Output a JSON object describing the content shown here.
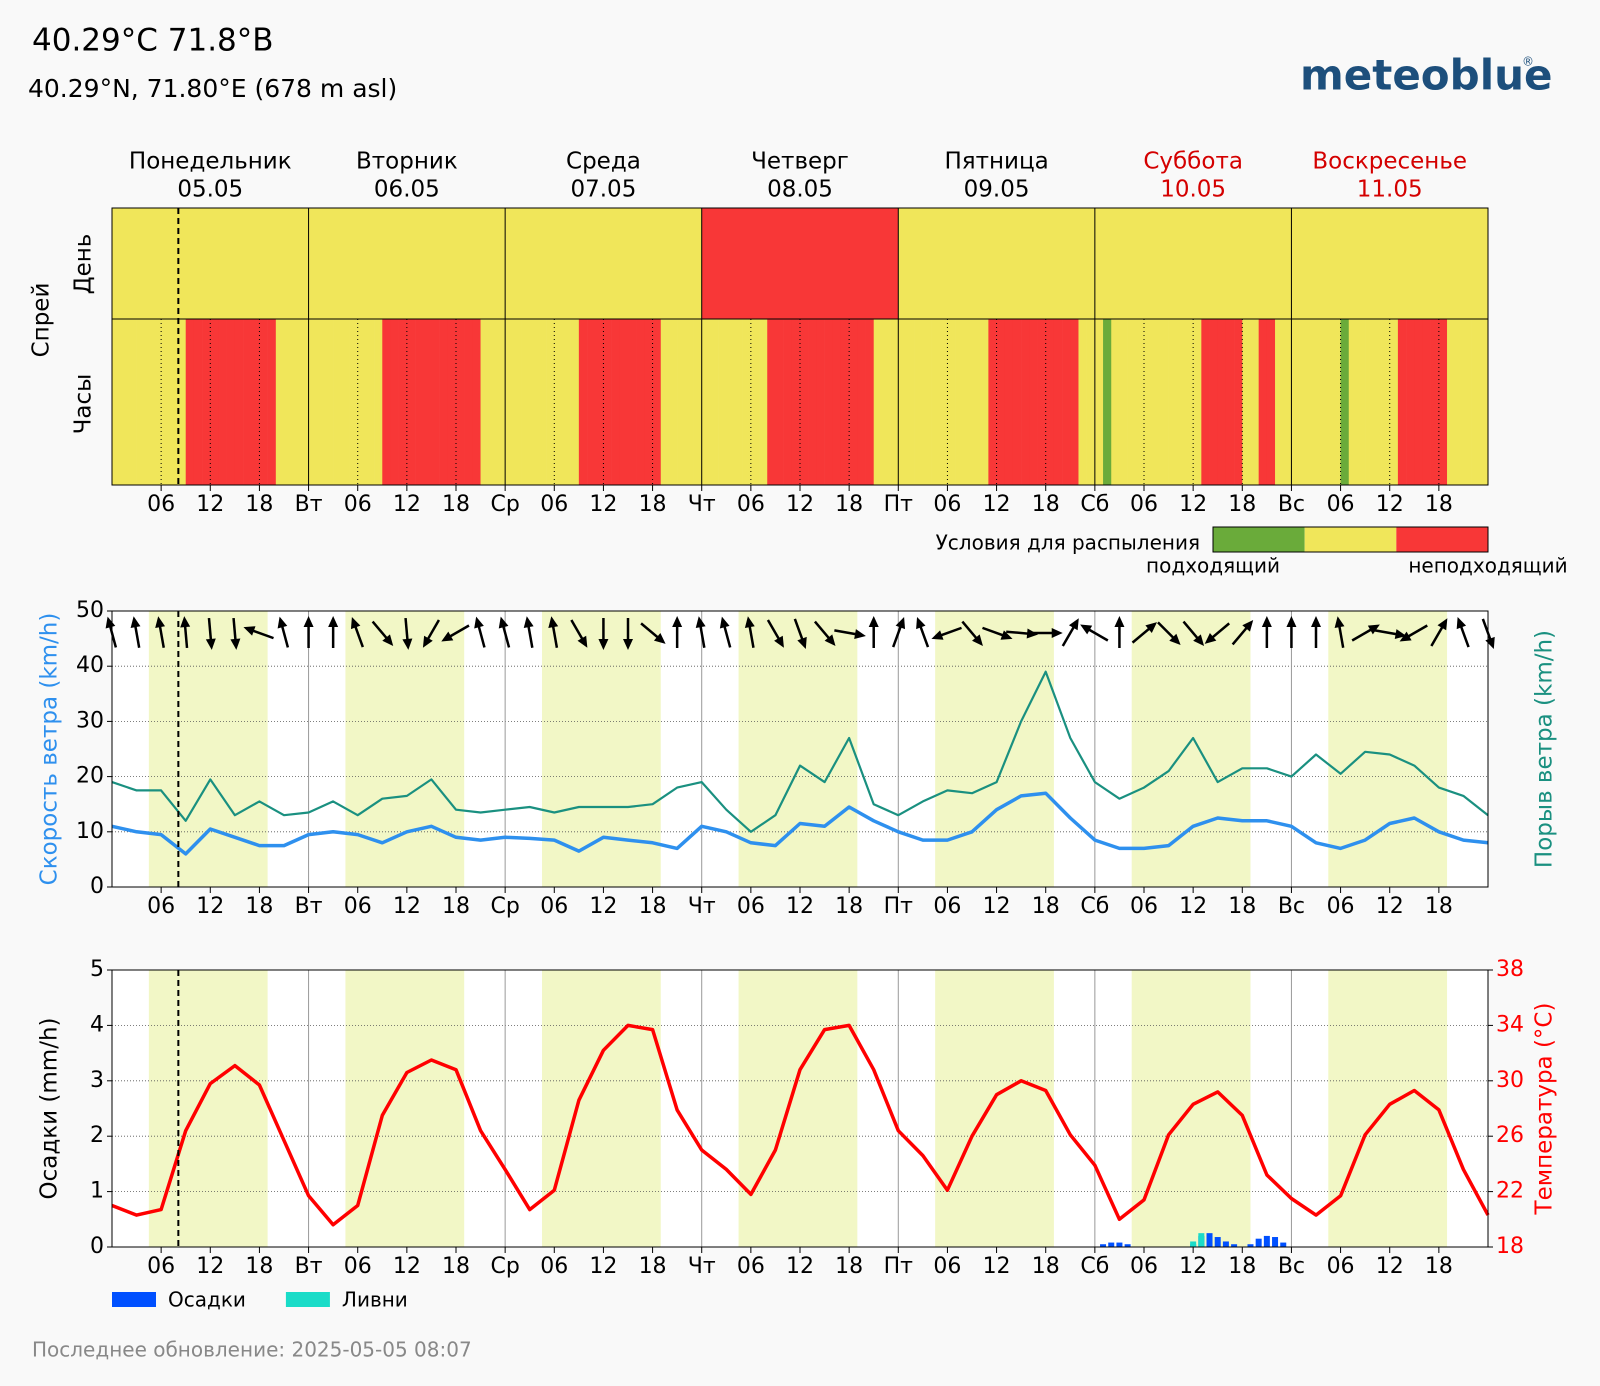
{
  "header": {
    "title": "40.29°C 71.8°В",
    "subtitle": "40.29°N, 71.80°E (678 m asl)",
    "logo": "meteoblue",
    "logo_mark": "®"
  },
  "days": [
    {
      "name": "Понедельник",
      "date": "05.05",
      "color": "#000000"
    },
    {
      "name": "Вторник",
      "date": "06.05",
      "color": "#000000"
    },
    {
      "name": "Среда",
      "date": "07.05",
      "color": "#000000"
    },
    {
      "name": "Четверг",
      "date": "08.05",
      "color": "#000000"
    },
    {
      "name": "Пятница",
      "date": "09.05",
      "color": "#000000"
    },
    {
      "name": "Суббота",
      "date": "10.05",
      "color": "#d40000"
    },
    {
      "name": "Воскресенье",
      "date": "11.05",
      "color": "#d40000"
    }
  ],
  "xlim": [
    0,
    168
  ],
  "xticks": [
    {
      "value": 6,
      "label": "06"
    },
    {
      "value": 12,
      "label": "12"
    },
    {
      "value": 18,
      "label": "18"
    },
    {
      "value": 24,
      "label": "Вт"
    },
    {
      "value": 30,
      "label": "06"
    },
    {
      "value": 36,
      "label": "12"
    },
    {
      "value": 42,
      "label": "18"
    },
    {
      "value": 48,
      "label": "Ср"
    },
    {
      "value": 54,
      "label": "06"
    },
    {
      "value": 60,
      "label": "12"
    },
    {
      "value": 66,
      "label": "18"
    },
    {
      "value": 72,
      "label": "Чт"
    },
    {
      "value": 78,
      "label": "06"
    },
    {
      "value": 84,
      "label": "12"
    },
    {
      "value": 90,
      "label": "18"
    },
    {
      "value": 96,
      "label": "Пт"
    },
    {
      "value": 102,
      "label": "06"
    },
    {
      "value": 108,
      "label": "12"
    },
    {
      "value": 114,
      "label": "18"
    },
    {
      "value": 120,
      "label": "Сб"
    },
    {
      "value": 126,
      "label": "06"
    },
    {
      "value": 132,
      "label": "12"
    },
    {
      "value": 138,
      "label": "18"
    },
    {
      "value": 144,
      "label": "Вс"
    },
    {
      "value": 150,
      "label": "06"
    },
    {
      "value": 156,
      "label": "12"
    },
    {
      "value": 162,
      "label": "18"
    }
  ],
  "now": 8.1,
  "daylight": [
    [
      4.5,
      19
    ],
    [
      28.5,
      43
    ],
    [
      52.5,
      67
    ],
    [
      76.5,
      91
    ],
    [
      100.5,
      115
    ],
    [
      124.5,
      139
    ],
    [
      148.5,
      163
    ]
  ],
  "footer": "Последнее обновление: 2025-05-05 08:07",
  "chart_data": [
    {
      "type": "spray",
      "ylabel": "Спрей",
      "rows": [
        "День",
        "Часы"
      ],
      "colors": [
        "#6aab3a",
        "#f0e65a",
        "#f83737"
      ],
      "day_values": [
        1,
        1,
        1,
        2,
        1,
        1,
        1
      ],
      "hour_values": [
        1,
        1,
        1,
        1,
        1,
        1,
        1,
        1,
        1,
        2,
        2,
        2,
        2,
        2,
        2,
        2,
        2,
        2,
        2,
        2,
        1,
        1,
        1,
        1,
        1,
        1,
        1,
        1,
        1,
        1,
        1,
        1,
        1,
        2,
        2,
        2,
        2,
        2,
        2,
        2,
        2,
        2,
        2,
        2,
        2,
        1,
        1,
        1,
        1,
        1,
        1,
        1,
        1,
        1,
        1,
        1,
        1,
        2,
        2,
        2,
        2,
        2,
        2,
        2,
        2,
        2,
        2,
        1,
        1,
        1,
        1,
        1,
        1,
        1,
        1,
        1,
        1,
        1,
        1,
        1,
        2,
        2,
        2,
        2,
        2,
        2,
        2,
        2,
        2,
        2,
        2,
        2,
        2,
        1,
        1,
        1,
        1,
        1,
        1,
        1,
        1,
        1,
        1,
        1,
        1,
        1,
        1,
        2,
        2,
        2,
        2,
        2,
        2,
        2,
        2,
        2,
        2,
        2,
        1,
        1,
        1,
        0,
        1,
        1,
        1,
        1,
        1,
        1,
        1,
        1,
        1,
        1,
        1,
        2,
        2,
        2,
        2,
        2,
        1,
        1,
        2,
        2,
        1,
        1,
        1,
        1,
        1,
        1,
        1,
        1,
        0,
        1,
        1,
        1,
        1,
        1,
        1,
        2,
        2,
        2,
        2,
        2,
        2,
        1,
        1,
        1,
        1,
        1
      ],
      "legend_title": "Условия для распыления",
      "legend_labels": [
        {
          "value": 0,
          "label": "подходящий"
        },
        {
          "value": 2,
          "label": "неподходящий"
        }
      ]
    },
    {
      "type": "line",
      "ylabel": "Скорость ветра (km/h)",
      "y2label": "Порыв ветра (km/h)",
      "ylabel_color": "#2e90ee",
      "y2label_color": "#1a9080",
      "ylim": [
        0,
        50
      ],
      "yticks": [
        0,
        10,
        20,
        30,
        40,
        50
      ],
      "y2lim": [
        0,
        50
      ],
      "grid": true,
      "x": [
        0,
        3,
        6,
        9,
        12,
        15,
        18,
        21,
        24,
        27,
        30,
        33,
        36,
        39,
        42,
        45,
        48,
        51,
        54,
        57,
        60,
        63,
        66,
        69,
        72,
        75,
        78,
        81,
        84,
        87,
        90,
        93,
        96,
        99,
        102,
        105,
        108,
        111,
        114,
        117,
        120,
        123,
        126,
        129,
        132,
        135,
        138,
        141,
        144,
        147,
        150,
        153,
        156,
        159,
        162,
        165,
        168
      ],
      "series": [
        {
          "color": "#2e90ee",
          "values": [
            11,
            10,
            9.5,
            6,
            10.5,
            9,
            7.5,
            7.5,
            9.5,
            10,
            9.5,
            8,
            10,
            11,
            9,
            8.5,
            9,
            8.8,
            8.5,
            6.5,
            9,
            8.5,
            8,
            7,
            11,
            10,
            8,
            7.5,
            11.5,
            11,
            14.5,
            12,
            10,
            8.5,
            8.5,
            10,
            14,
            16.5,
            17,
            12.5,
            8.5,
            7,
            7,
            7.5,
            11,
            12.5,
            12,
            12,
            11,
            8,
            7,
            8.5,
            11.5,
            12.5,
            10,
            8.5,
            8
          ]
        },
        {
          "color": "#1a9080",
          "axis": "y2",
          "values": [
            19,
            17.5,
            17.5,
            12,
            19.5,
            13,
            15.5,
            13,
            13.5,
            15.5,
            13,
            16,
            16.5,
            19.5,
            14,
            13.5,
            14,
            14.5,
            13.5,
            14.5,
            14.5,
            14.5,
            15,
            18,
            19,
            14,
            10,
            13,
            22,
            19,
            27,
            15,
            13,
            15.5,
            17.5,
            17,
            19,
            30,
            39,
            27,
            19,
            16,
            18,
            21,
            27,
            19,
            21.5,
            21.5,
            20,
            24,
            20.5,
            24.5,
            24,
            22,
            18,
            16.5,
            13
          ]
        }
      ],
      "wind_direction": [
        -15,
        -10,
        -10,
        -5,
        175,
        175,
        290,
        -15,
        0,
        0,
        -20,
        140,
        175,
        210,
        240,
        -15,
        -15,
        -10,
        -10,
        150,
        180,
        180,
        130,
        0,
        -10,
        -15,
        -10,
        150,
        160,
        140,
        100,
        0,
        20,
        -20,
        250,
        140,
        110,
        95,
        90,
        30,
        300,
        0,
        50,
        135,
        140,
        230,
        40,
        0,
        0,
        0,
        -10,
        60,
        100,
        240,
        30,
        -20,
        160
      ]
    },
    {
      "type": "bar_line",
      "ylabel": "Осадки (mm/h)",
      "y2label": "Температура (°C)",
      "ylabel_color": "#000000",
      "y2label_color": "#ff0000",
      "ylim": [
        0,
        5
      ],
      "yticks": [
        0,
        1,
        2,
        3,
        4,
        5
      ],
      "y2lim": [
        18,
        38
      ],
      "y2ticks": [
        18,
        22,
        26,
        30,
        34,
        38
      ],
      "grid": true,
      "x": [
        0,
        3,
        6,
        9,
        12,
        15,
        18,
        21,
        24,
        27,
        30,
        33,
        36,
        39,
        42,
        45,
        48,
        51,
        54,
        57,
        60,
        63,
        66,
        69,
        72,
        75,
        78,
        81,
        84,
        87,
        90,
        93,
        96,
        99,
        102,
        105,
        108,
        111,
        114,
        117,
        120,
        123,
        126,
        129,
        132,
        135,
        138,
        141,
        144,
        147,
        150,
        153,
        156,
        159,
        162,
        165,
        168
      ],
      "series": [
        {
          "name": "Осадки",
          "color": "#0050ff",
          "kind": "bar",
          "x": [
            121,
            122,
            123,
            124,
            132,
            133,
            134,
            135,
            136,
            137,
            139,
            140,
            141,
            142,
            143
          ],
          "values": [
            0.05,
            0.08,
            0.08,
            0.05,
            0.05,
            0.2,
            0.25,
            0.18,
            0.1,
            0.05,
            0.05,
            0.15,
            0.2,
            0.18,
            0.08
          ]
        },
        {
          "name": "Ливни",
          "color": "#1adcc8",
          "kind": "bar",
          "x": [
            132,
            133
          ],
          "values": [
            0.1,
            0.25
          ]
        },
        {
          "color": "#ff0000",
          "axis": "y2",
          "values": [
            21.0,
            20.3,
            20.7,
            26.4,
            29.8,
            31.1,
            29.7,
            25.7,
            21.7,
            19.6,
            21.0,
            27.5,
            30.6,
            31.5,
            30.8,
            26.4,
            23.6,
            20.7,
            22.1,
            28.6,
            32.2,
            34.0,
            33.7,
            27.9,
            25.0,
            23.6,
            21.8,
            25.0,
            30.8,
            33.7,
            34.0,
            30.8,
            26.4,
            24.6,
            22.1,
            26.0,
            29.0,
            30.0,
            29.3,
            26.1,
            23.9,
            20.0,
            21.4,
            26.1,
            28.3,
            29.2,
            27.5,
            23.2,
            21.5,
            20.3,
            21.7,
            26.1,
            28.3,
            29.3,
            27.9,
            23.6,
            20.3
          ]
        }
      ]
    }
  ]
}
